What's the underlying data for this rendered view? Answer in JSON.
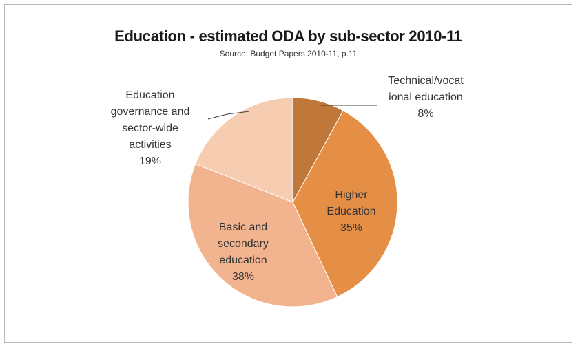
{
  "chart_data": {
    "type": "pie",
    "title": "Education - estimated ODA by sub-sector 2010-11",
    "subtitle": "Source: Budget Papers 2010-11, p.11",
    "slices": [
      {
        "label": "Technical/vocational education",
        "display_lines": [
          "Technical/vocat",
          "ional education"
        ],
        "value": 8,
        "percent_label": "8%",
        "color": "#c0773a"
      },
      {
        "label": "Higher Education",
        "display_lines": [
          "Higher",
          "Education"
        ],
        "value": 35,
        "percent_label": "35%",
        "color": "#e58e45"
      },
      {
        "label": "Basic and secondary education",
        "display_lines": [
          "Basic and",
          "secondary",
          "education"
        ],
        "value": 38,
        "percent_label": "38%",
        "color": "#f2b48f"
      },
      {
        "label": "Education governance and sector-wide activities",
        "display_lines": [
          "Education",
          "governance and",
          "sector-wide",
          "activities"
        ],
        "value": 19,
        "percent_label": "19%",
        "color": "#f6cdb1"
      }
    ],
    "start_angle_deg": 0,
    "direction": "clockwise",
    "legend": "none",
    "data_labels": "category and percent"
  }
}
